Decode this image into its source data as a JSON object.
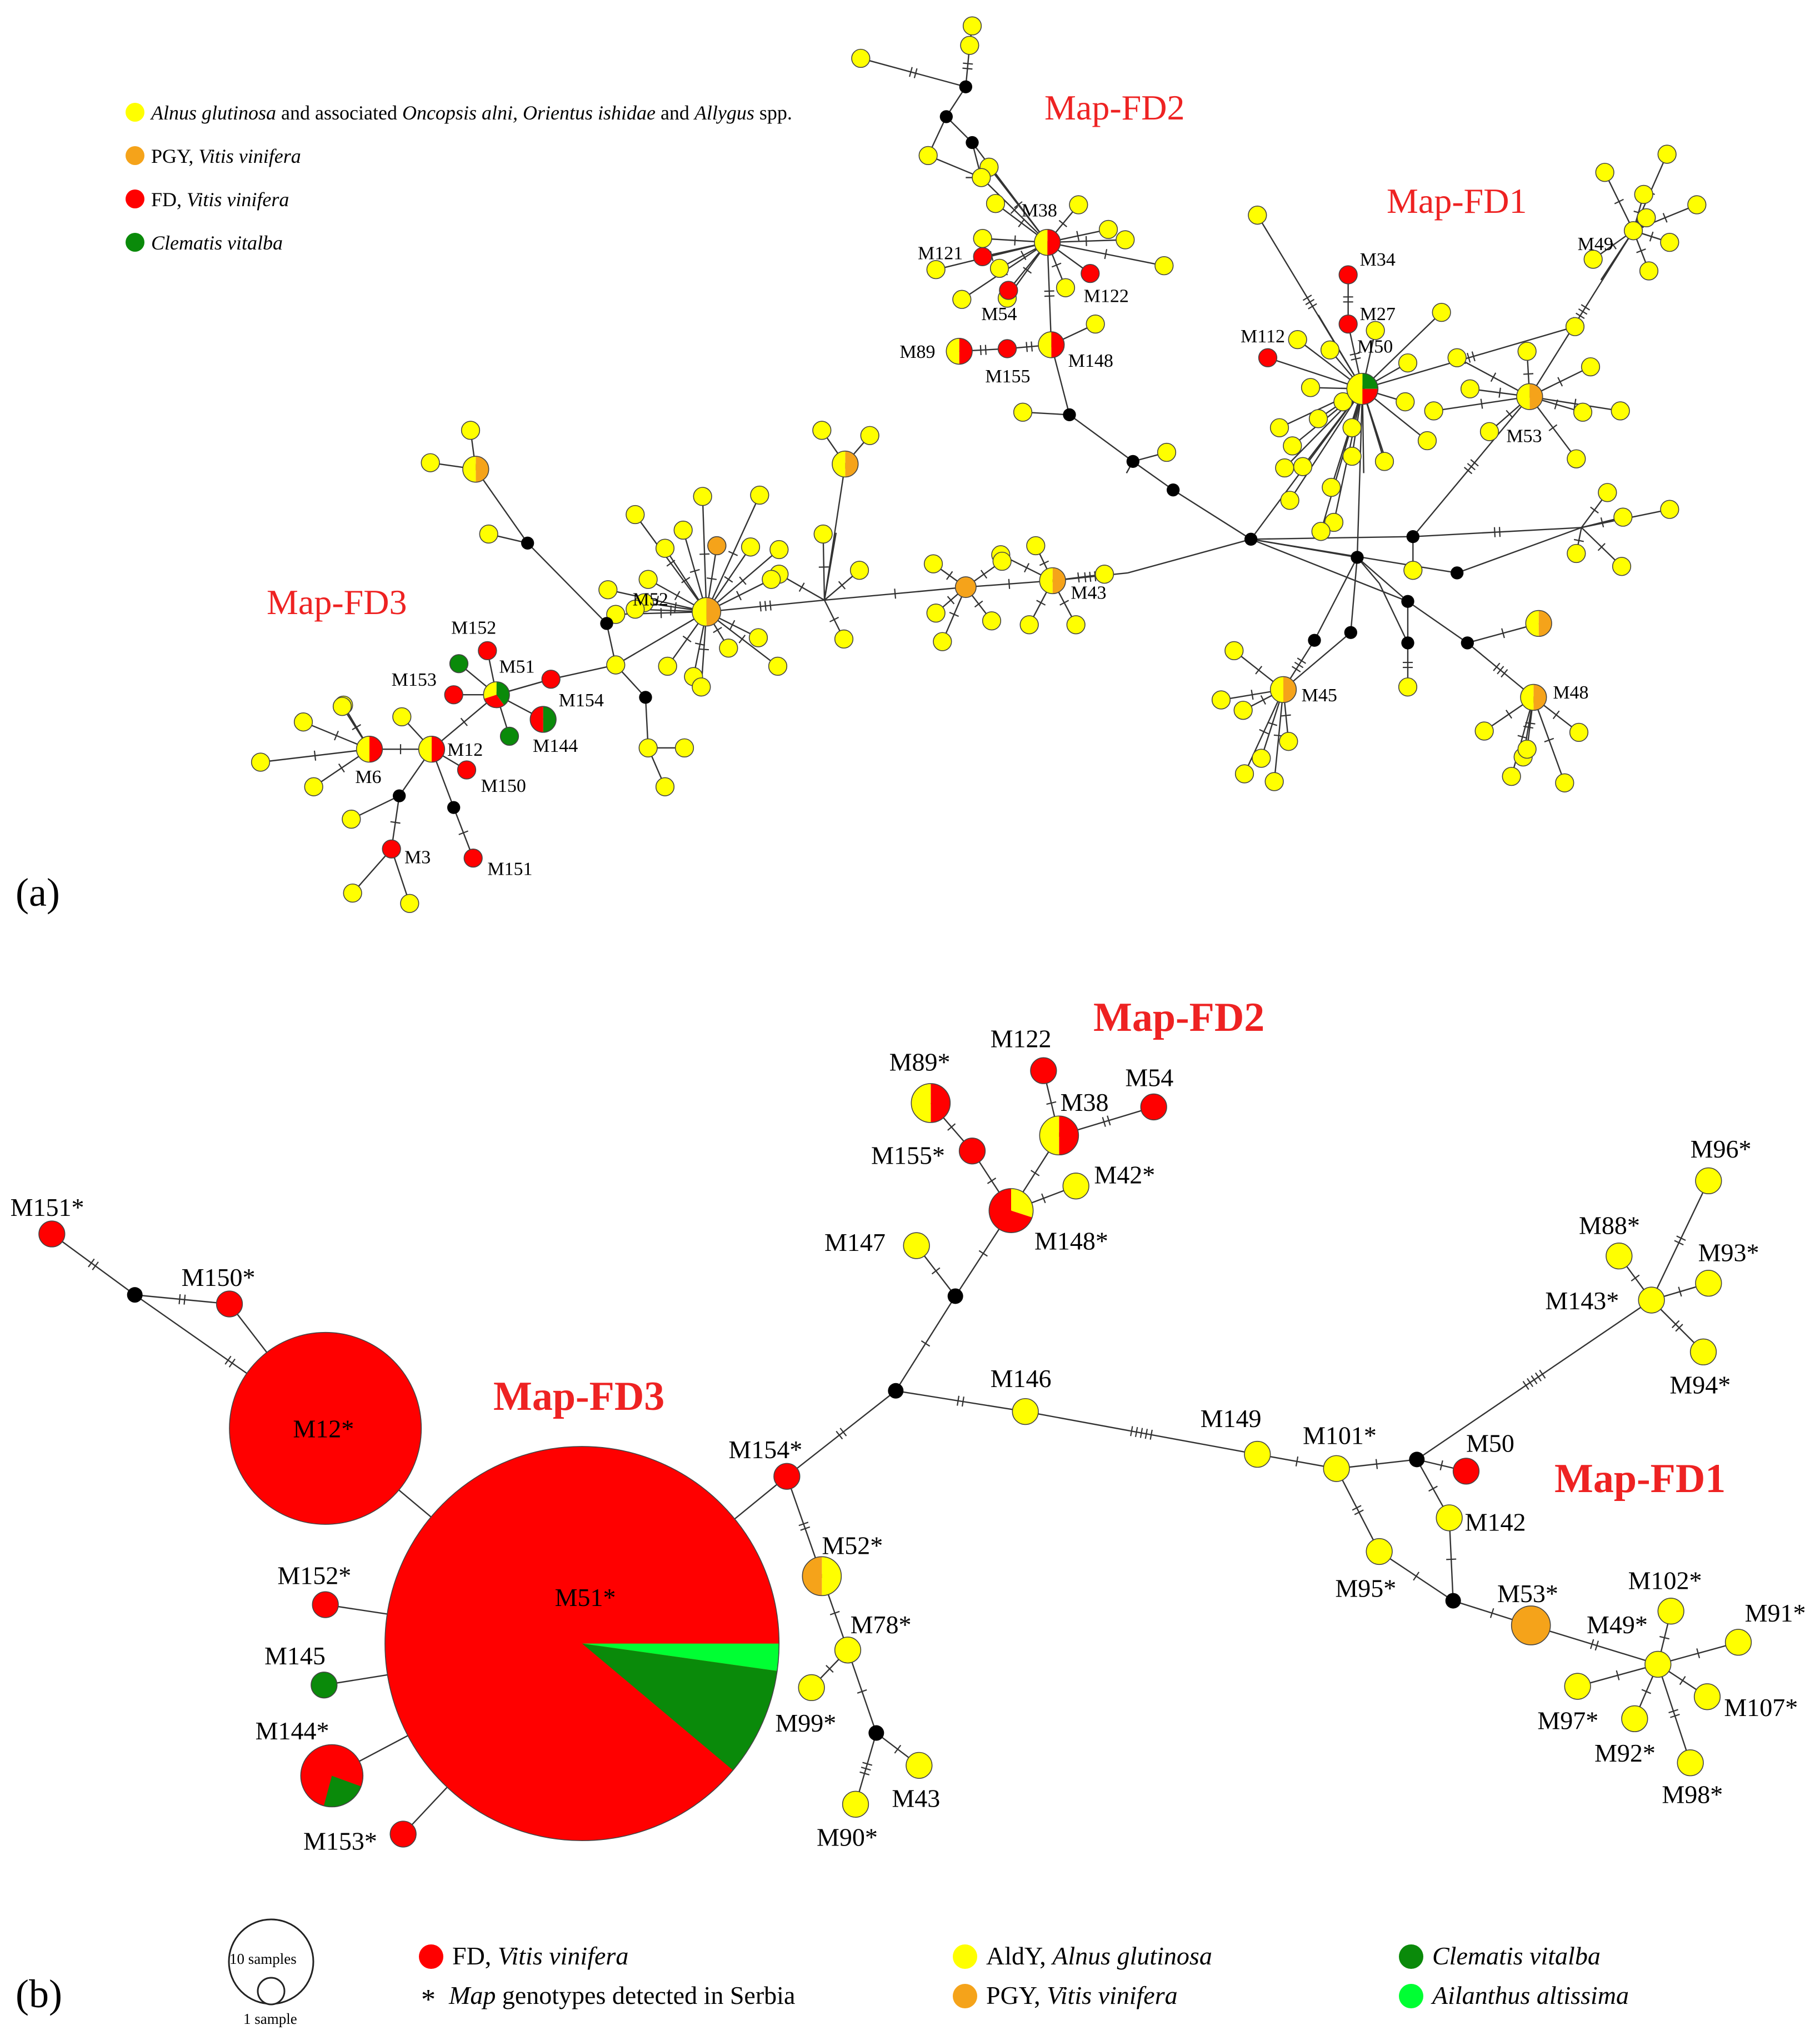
{
  "colors": {
    "yellow": "#ffff00",
    "orange": "#f5a31a",
    "red": "#ff0000",
    "green": "#0a8a0a",
    "lightgreen": "#00ff33",
    "cluster": "#ee2222"
  },
  "panel_a": {
    "panel_label": "(a)",
    "clusters": [
      "Map-FD2",
      "Map-FD1",
      "Map-FD3"
    ],
    "legend": [
      {
        "color": "yellow",
        "parts": [
          "Alnus glutinosa",
          " and associated ",
          "Oncopsis alni, Orientus ishidae",
          " and ",
          "Allygus",
          " spp."
        ]
      },
      {
        "color": "orange",
        "parts": [
          "PGY, ",
          "Vitis vinifera"
        ]
      },
      {
        "color": "red",
        "parts": [
          "FD, ",
          "Vitis vinifera"
        ]
      },
      {
        "color": "green",
        "parts": [
          "Clematis vitalba"
        ]
      }
    ],
    "labels": [
      "M38",
      "M121",
      "M122",
      "M54",
      "M89",
      "M155",
      "M148",
      "M34",
      "M27",
      "M112",
      "M50",
      "M49",
      "M53",
      "M52",
      "M43",
      "M45",
      "M48",
      "M152",
      "M51",
      "M153",
      "M154",
      "M144",
      "M6",
      "M12",
      "M150",
      "M3",
      "M151"
    ]
  },
  "panel_b": {
    "panel_label": "(b)",
    "clusters": [
      "Map-FD2",
      "Map-FD3",
      "Map-FD1"
    ],
    "labels": [
      "M151*",
      "M150*",
      "M12*",
      "M51*",
      "M152*",
      "M145",
      "M144*",
      "M153*",
      "M154*",
      "M52*",
      "M78*",
      "M99*",
      "M43",
      "M90*",
      "M147",
      "M146",
      "M148*",
      "M155*",
      "M89*",
      "M122",
      "M38",
      "M54",
      "M42*",
      "M149",
      "M101*",
      "M50",
      "M142",
      "M95*",
      "M53*",
      "M143*",
      "M88*",
      "M96*",
      "M93*",
      "M94*",
      "M49*",
      "M102*",
      "M91*",
      "M107*",
      "M97*",
      "M92*",
      "M98*"
    ],
    "legend": {
      "scale_large": "10 samples",
      "scale_small": "1 sample",
      "items": [
        {
          "color": "red",
          "parts": [
            "FD, ",
            "Vitis vinifera"
          ]
        },
        {
          "color": "yellow",
          "parts": [
            "AldY, ",
            "Alnus glutinosa"
          ]
        },
        {
          "color": "green",
          "parts": [
            "Clematis vitalba"
          ]
        },
        {
          "color": "orange",
          "parts": [
            "PGY, ",
            "Vitis vinifera"
          ]
        },
        {
          "color": "lightgreen",
          "parts": [
            "Ailanthus altissima"
          ]
        }
      ],
      "asterisk_symbol": "*",
      "asterisk_parts": [
        "Map",
        " genotypes detected in Serbia"
      ]
    }
  }
}
